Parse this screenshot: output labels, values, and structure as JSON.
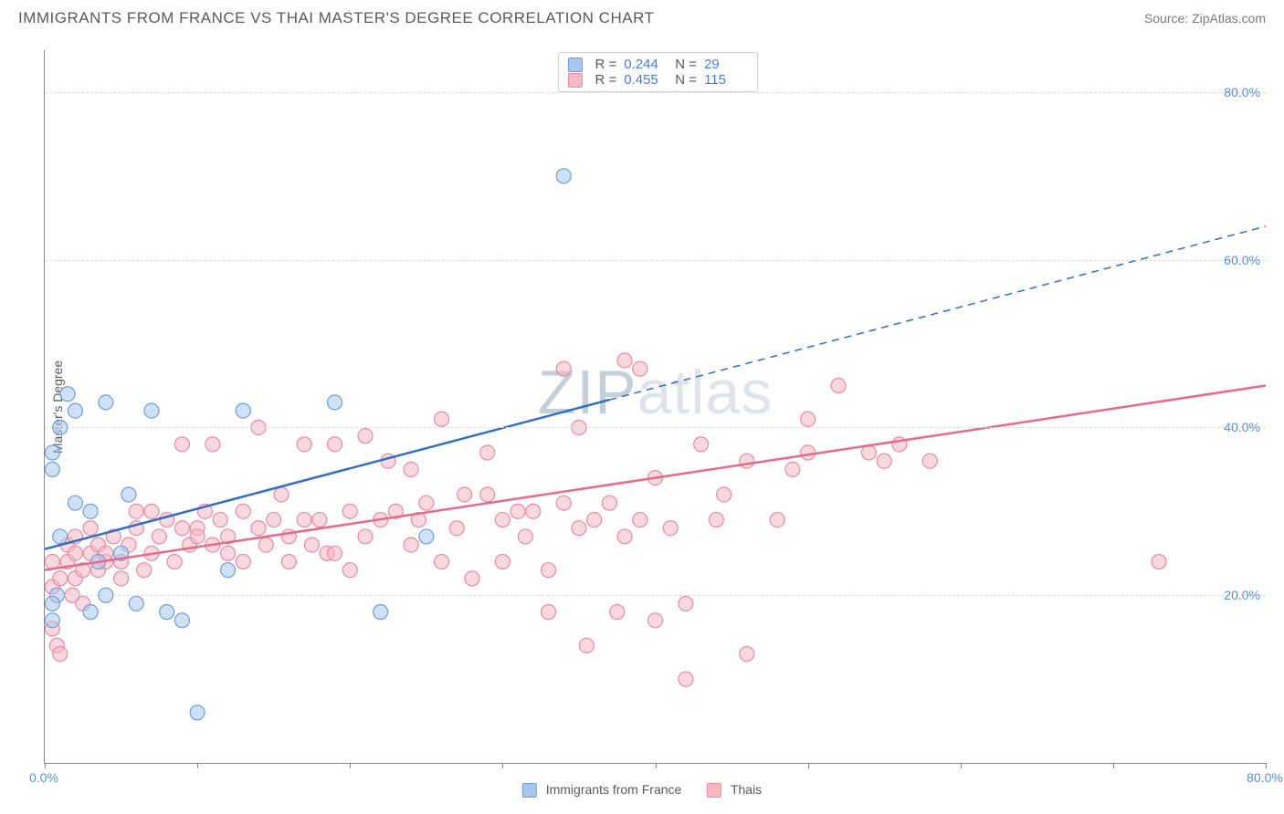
{
  "header": {
    "title": "IMMIGRANTS FROM FRANCE VS THAI MASTER'S DEGREE CORRELATION CHART",
    "source_label": "Source:",
    "source_value": "ZipAtlas.com"
  },
  "watermark": {
    "zip": "ZIP",
    "atlas": "atlas"
  },
  "y_axis_label": "Master's Degree",
  "chart": {
    "type": "scatter",
    "xlim": [
      0,
      80
    ],
    "ylim": [
      0,
      85
    ],
    "y_ticks": [
      {
        "val": 20,
        "label": "20.0%"
      },
      {
        "val": 40,
        "label": "40.0%"
      },
      {
        "val": 60,
        "label": "60.0%"
      },
      {
        "val": 80,
        "label": "80.0%"
      }
    ],
    "x_ticks": [
      0,
      10,
      20,
      30,
      40,
      50,
      60,
      70,
      80
    ],
    "x_tick_labels": [
      {
        "val": 0,
        "label": "0.0%"
      },
      {
        "val": 80,
        "label": "80.0%"
      }
    ],
    "background_color": "#ffffff",
    "grid_color": "#dcdcdc",
    "axis_color": "#888888",
    "tick_label_color": "#5a8fd6",
    "marker_radius": 8,
    "marker_stroke_width": 1.2,
    "line_width": 2.5,
    "series": {
      "blue": {
        "label": "Immigrants from France",
        "fill": "#a9c7ee",
        "stroke": "#6e9fd8",
        "fill_opacity": 0.55,
        "line_color": "#2f6fc4",
        "R": "0.244",
        "N": "29",
        "trend": {
          "x1": 0,
          "y1": 25.5,
          "x2": 80,
          "y2": 64,
          "dash_after_x": 37
        },
        "points": [
          [
            0.5,
            37
          ],
          [
            0.5,
            35
          ],
          [
            1,
            40
          ],
          [
            2,
            42
          ],
          [
            2,
            31
          ],
          [
            1,
            27
          ],
          [
            0.8,
            20
          ],
          [
            0.5,
            19
          ],
          [
            0.5,
            17
          ],
          [
            1.5,
            44
          ],
          [
            3,
            30
          ],
          [
            3,
            18
          ],
          [
            3.5,
            24
          ],
          [
            4,
            43
          ],
          [
            4,
            20
          ],
          [
            5,
            25
          ],
          [
            5.5,
            32
          ],
          [
            6,
            19
          ],
          [
            7,
            42
          ],
          [
            8,
            18
          ],
          [
            9,
            17
          ],
          [
            10,
            6
          ],
          [
            12,
            23
          ],
          [
            13,
            42
          ],
          [
            19,
            43
          ],
          [
            22,
            18
          ],
          [
            25,
            27
          ],
          [
            34,
            70
          ]
        ]
      },
      "pink": {
        "label": "Thais",
        "fill": "#f6b8c6",
        "stroke": "#ea8aa2",
        "fill_opacity": 0.55,
        "line_color": "#e86a8a",
        "R": "0.455",
        "N": "115",
        "trend": {
          "x1": 0,
          "y1": 23,
          "x2": 80,
          "y2": 45
        },
        "points": [
          [
            0.5,
            24
          ],
          [
            0.5,
            21
          ],
          [
            0.5,
            16
          ],
          [
            0.8,
            14
          ],
          [
            1,
            13
          ],
          [
            1,
            22
          ],
          [
            1.5,
            24
          ],
          [
            1.5,
            26
          ],
          [
            1.8,
            20
          ],
          [
            2,
            25
          ],
          [
            2,
            22
          ],
          [
            2,
            27
          ],
          [
            2.5,
            23
          ],
          [
            2.5,
            19
          ],
          [
            3,
            25
          ],
          [
            3,
            28
          ],
          [
            3.5,
            23
          ],
          [
            3.5,
            26
          ],
          [
            4,
            24
          ],
          [
            4,
            25
          ],
          [
            4.5,
            27
          ],
          [
            5,
            24
          ],
          [
            5,
            22
          ],
          [
            5.5,
            26
          ],
          [
            6,
            28
          ],
          [
            6,
            30
          ],
          [
            6.5,
            23
          ],
          [
            7,
            30
          ],
          [
            7,
            25
          ],
          [
            7.5,
            27
          ],
          [
            8,
            29
          ],
          [
            8.5,
            24
          ],
          [
            9,
            28
          ],
          [
            9,
            38
          ],
          [
            9.5,
            26
          ],
          [
            10,
            28
          ],
          [
            10,
            27
          ],
          [
            10.5,
            30
          ],
          [
            11,
            38
          ],
          [
            11,
            26
          ],
          [
            11.5,
            29
          ],
          [
            12,
            25
          ],
          [
            12,
            27
          ],
          [
            13,
            30
          ],
          [
            13,
            24
          ],
          [
            14,
            40
          ],
          [
            14,
            28
          ],
          [
            14.5,
            26
          ],
          [
            15,
            29
          ],
          [
            15.5,
            32
          ],
          [
            16,
            27
          ],
          [
            16,
            24
          ],
          [
            17,
            29
          ],
          [
            17,
            38
          ],
          [
            17.5,
            26
          ],
          [
            18,
            29
          ],
          [
            18.5,
            25
          ],
          [
            19,
            38
          ],
          [
            19,
            25
          ],
          [
            20,
            30
          ],
          [
            20,
            23
          ],
          [
            21,
            39
          ],
          [
            21,
            27
          ],
          [
            22,
            29
          ],
          [
            22.5,
            36
          ],
          [
            23,
            30
          ],
          [
            24,
            26
          ],
          [
            24,
            35
          ],
          [
            24.5,
            29
          ],
          [
            25,
            31
          ],
          [
            26,
            24
          ],
          [
            26,
            41
          ],
          [
            27,
            28
          ],
          [
            27.5,
            32
          ],
          [
            28,
            22
          ],
          [
            29,
            32
          ],
          [
            29,
            37
          ],
          [
            30,
            29
          ],
          [
            30,
            24
          ],
          [
            31,
            30
          ],
          [
            31.5,
            27
          ],
          [
            32,
            30
          ],
          [
            33,
            23
          ],
          [
            33,
            18
          ],
          [
            34,
            31
          ],
          [
            34,
            47
          ],
          [
            35,
            28
          ],
          [
            35,
            40
          ],
          [
            35.5,
            14
          ],
          [
            36,
            29
          ],
          [
            37,
            31
          ],
          [
            37.5,
            18
          ],
          [
            38,
            48
          ],
          [
            38,
            27
          ],
          [
            39,
            47
          ],
          [
            39,
            29
          ],
          [
            40,
            17
          ],
          [
            40,
            34
          ],
          [
            41,
            28
          ],
          [
            42,
            19
          ],
          [
            42,
            10
          ],
          [
            43,
            38
          ],
          [
            44,
            29
          ],
          [
            44.5,
            32
          ],
          [
            46,
            13
          ],
          [
            46,
            36
          ],
          [
            48,
            29
          ],
          [
            49,
            35
          ],
          [
            50,
            41
          ],
          [
            50,
            37
          ],
          [
            52,
            45
          ],
          [
            54,
            37
          ],
          [
            55,
            36
          ],
          [
            56,
            38
          ],
          [
            58,
            36
          ],
          [
            73,
            24
          ]
        ]
      }
    }
  },
  "top_legend": {
    "R_prefix": "R =",
    "N_prefix": "N ="
  },
  "bottom_legend": {}
}
